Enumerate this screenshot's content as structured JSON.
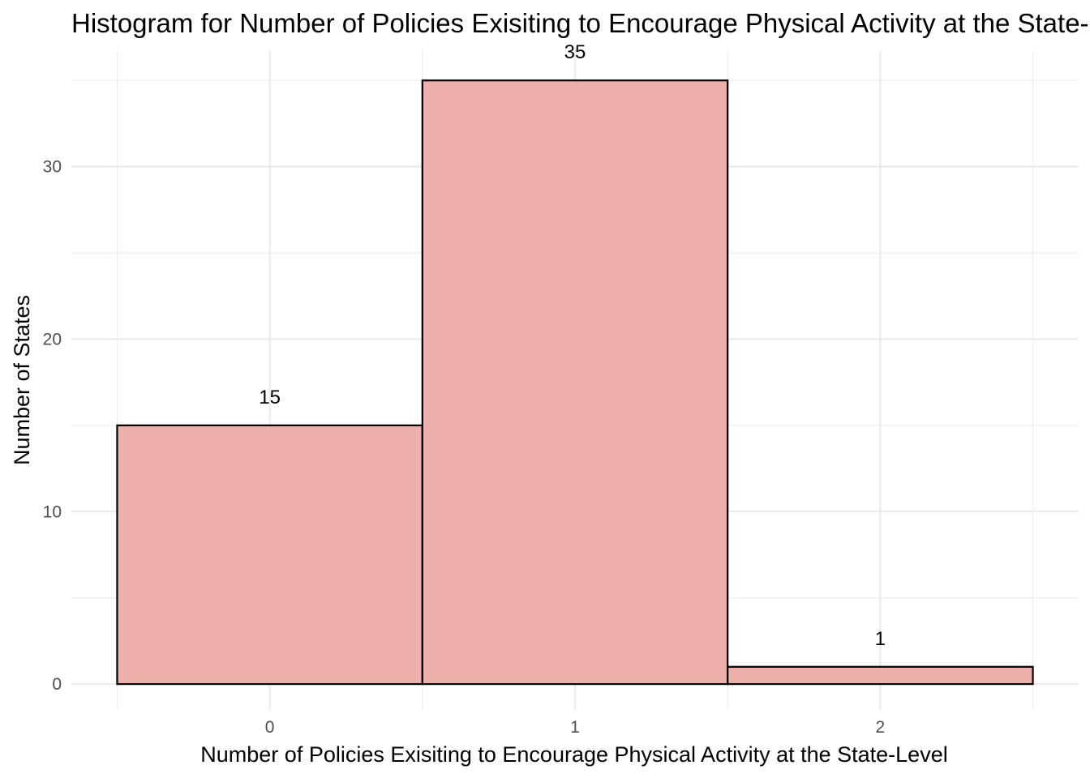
{
  "chart_data": {
    "type": "bar",
    "title": "Histogram for Number of Policies Exisiting to Encourage Physical Activity at the State-Level",
    "xlabel": "Number of Policies Exisiting to Encourage Physical Activity at the State-Level",
    "ylabel": "Number of States",
    "categories": [
      "0",
      "1",
      "2"
    ],
    "values": [
      15,
      35,
      1
    ],
    "data_labels": [
      "15",
      "35",
      "1"
    ],
    "x_domain": [
      -0.65,
      2.65
    ],
    "ylim": [
      -1.5,
      36.75
    ],
    "y_ticks": [
      0,
      10,
      20,
      30
    ],
    "y_tick_labels": [
      "0",
      "10",
      "20",
      "30"
    ],
    "y_minor_ticks": [
      5,
      15,
      25,
      35
    ],
    "x_minor_ticks": [
      -0.5,
      0.5,
      1.5,
      2.5
    ],
    "grid": true,
    "legend": "none",
    "colors": {
      "bar_fill": "#ecafa9",
      "bar_stroke": "#000000",
      "grid": "#ebebeb",
      "background": "#ffffff"
    }
  }
}
